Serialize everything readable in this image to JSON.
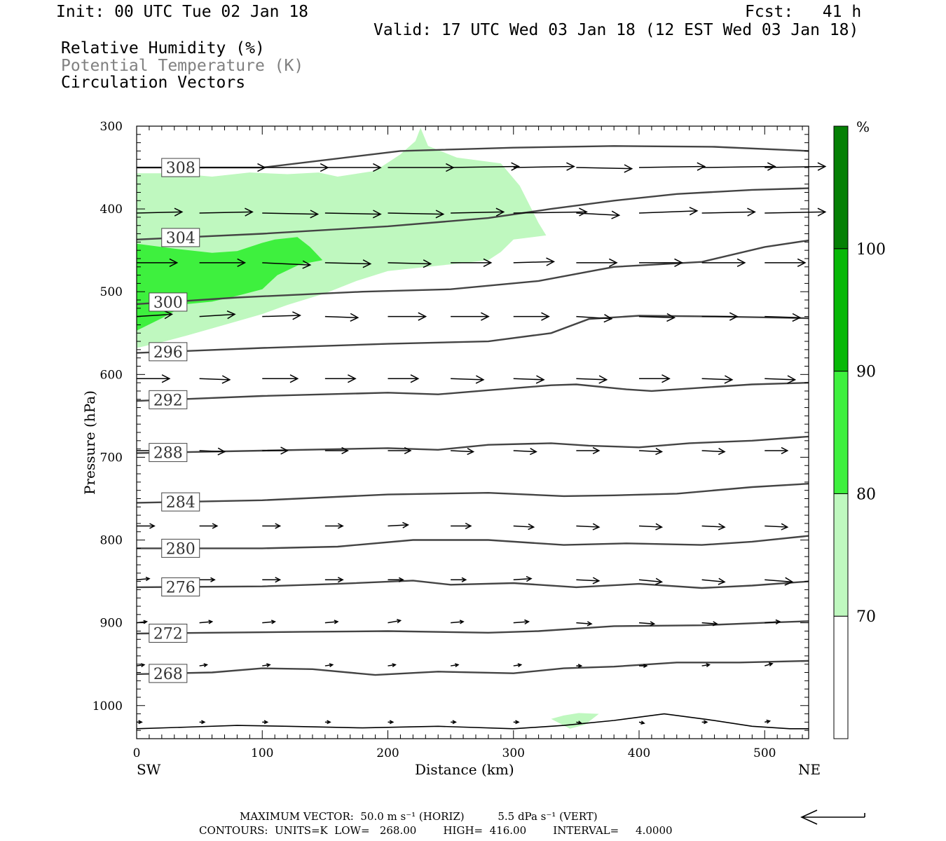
{
  "header": {
    "init": "Init: 00 UTC Tue 02 Jan 18",
    "fcst": "Fcst:   41 h",
    "valid": "Valid: 17 UTC Wed 03 Jan 18 (12 EST Wed 03 Jan 18)",
    "fields": [
      "Relative Humidity (%)",
      "Potential Temperature (K)",
      "Circulation Vectors"
    ]
  },
  "colors": {
    "rh70": "#bff8bf",
    "rh80": "#3ef03e",
    "rh90": "#07b807",
    "rh100": "#058005",
    "theta_line": "#444444",
    "field_rh": "#000000",
    "field_theta": "#808080",
    "field_vec": "#000000"
  },
  "chart_data": {
    "type": "cross-section",
    "xlabel": "Distance (km)",
    "ylabel": "Pressure (hPa)",
    "x_range": [
      0,
      535
    ],
    "y_range": [
      300,
      1040
    ],
    "y_scale": "linear, inverted",
    "x_ticks": [
      0,
      100,
      200,
      300,
      400,
      500
    ],
    "y_ticks": [
      300,
      400,
      500,
      600,
      700,
      800,
      900,
      1000
    ],
    "x_end_labels": {
      "left": "SW",
      "right": "NE"
    },
    "colorbar": {
      "unit": "%",
      "levels": [
        70,
        80,
        90,
        100
      ]
    },
    "rh_regions": [
      {
        "level": 70,
        "points": [
          [
            0,
            357
          ],
          [
            30,
            357
          ],
          [
            60,
            361
          ],
          [
            90,
            356
          ],
          [
            120,
            358
          ],
          [
            145,
            356
          ],
          [
            160,
            361
          ],
          [
            190,
            354
          ],
          [
            210,
            334
          ],
          [
            222,
            318
          ],
          [
            226,
            302
          ],
          [
            232,
            324
          ],
          [
            255,
            338
          ],
          [
            290,
            345
          ],
          [
            305,
            372
          ],
          [
            320,
            417
          ],
          [
            326,
            432
          ],
          [
            300,
            437
          ],
          [
            290,
            452
          ],
          [
            280,
            462
          ],
          [
            250,
            467
          ],
          [
            200,
            475
          ],
          [
            175,
            487
          ],
          [
            150,
            502
          ],
          [
            120,
            516
          ],
          [
            100,
            527
          ],
          [
            70,
            540
          ],
          [
            40,
            553
          ],
          [
            20,
            561
          ],
          [
            0,
            568
          ]
        ]
      },
      {
        "level": 70,
        "points": [
          [
            330,
            1016
          ],
          [
            345,
            1028
          ],
          [
            357,
            1023
          ],
          [
            368,
            1010
          ],
          [
            352,
            1009
          ],
          [
            340,
            1012
          ]
        ]
      },
      {
        "level": 80,
        "points": [
          [
            0,
            442
          ],
          [
            30,
            448
          ],
          [
            60,
            453
          ],
          [
            80,
            451
          ],
          [
            100,
            441
          ],
          [
            110,
            437
          ],
          [
            128,
            434
          ],
          [
            138,
            446
          ],
          [
            148,
            462
          ],
          [
            130,
            467
          ],
          [
            112,
            480
          ],
          [
            100,
            497
          ],
          [
            80,
            505
          ],
          [
            60,
            512
          ],
          [
            40,
            515
          ],
          [
            20,
            532
          ],
          [
            0,
            547
          ]
        ]
      }
    ],
    "theta_contours": [
      {
        "value": 308,
        "label_at": 35,
        "points": [
          [
            0,
            350
          ],
          [
            100,
            350
          ],
          [
            210,
            330
          ],
          [
            300,
            326
          ],
          [
            380,
            324
          ],
          [
            460,
            325
          ],
          [
            535,
            330
          ]
        ]
      },
      {
        "value": 304,
        "label_at": 35,
        "points": [
          [
            0,
            437
          ],
          [
            100,
            430
          ],
          [
            200,
            421
          ],
          [
            280,
            411
          ],
          [
            330,
            400
          ],
          [
            380,
            390
          ],
          [
            430,
            382
          ],
          [
            490,
            377
          ],
          [
            535,
            375
          ]
        ]
      },
      {
        "value": 300,
        "label_at": 25,
        "points": [
          [
            0,
            515
          ],
          [
            80,
            507
          ],
          [
            180,
            500
          ],
          [
            250,
            497
          ],
          [
            320,
            487
          ],
          [
            380,
            470
          ],
          [
            450,
            464
          ],
          [
            500,
            446
          ],
          [
            535,
            438
          ]
        ]
      },
      {
        "value": 296,
        "label_at": 25,
        "points": [
          [
            0,
            574
          ],
          [
            100,
            568
          ],
          [
            200,
            563
          ],
          [
            280,
            560
          ],
          [
            330,
            550
          ],
          [
            360,
            533
          ],
          [
            400,
            529
          ],
          [
            460,
            530
          ],
          [
            535,
            532
          ]
        ]
      },
      {
        "value": 292,
        "label_at": 25,
        "points": [
          [
            0,
            632
          ],
          [
            100,
            626
          ],
          [
            200,
            622
          ],
          [
            240,
            624
          ],
          [
            280,
            619
          ],
          [
            330,
            613
          ],
          [
            350,
            612
          ],
          [
            390,
            618
          ],
          [
            410,
            620
          ],
          [
            450,
            616
          ],
          [
            490,
            612
          ],
          [
            535,
            610
          ]
        ]
      },
      {
        "value": 288,
        "label_at": 25,
        "points": [
          [
            0,
            695
          ],
          [
            100,
            692
          ],
          [
            200,
            689
          ],
          [
            240,
            691
          ],
          [
            280,
            685
          ],
          [
            330,
            683
          ],
          [
            360,
            686
          ],
          [
            400,
            688
          ],
          [
            440,
            683
          ],
          [
            490,
            680
          ],
          [
            535,
            675
          ]
        ]
      },
      {
        "value": 284,
        "label_at": 35,
        "points": [
          [
            0,
            755
          ],
          [
            100,
            752
          ],
          [
            200,
            745
          ],
          [
            280,
            743
          ],
          [
            340,
            747
          ],
          [
            380,
            746
          ],
          [
            430,
            744
          ],
          [
            490,
            736
          ],
          [
            535,
            732
          ]
        ]
      },
      {
        "value": 280,
        "label_at": 35,
        "points": [
          [
            0,
            810
          ],
          [
            100,
            810
          ],
          [
            160,
            808
          ],
          [
            220,
            800
          ],
          [
            280,
            800
          ],
          [
            340,
            806
          ],
          [
            390,
            804
          ],
          [
            450,
            806
          ],
          [
            490,
            802
          ],
          [
            535,
            795
          ]
        ]
      },
      {
        "value": 276,
        "label_at": 35,
        "points": [
          [
            0,
            857
          ],
          [
            100,
            856
          ],
          [
            160,
            853
          ],
          [
            220,
            849
          ],
          [
            250,
            854
          ],
          [
            300,
            852
          ],
          [
            350,
            857
          ],
          [
            400,
            853
          ],
          [
            450,
            858
          ],
          [
            490,
            855
          ],
          [
            535,
            850
          ]
        ]
      },
      {
        "value": 272,
        "label_at": 25,
        "points": [
          [
            0,
            913
          ],
          [
            60,
            912
          ],
          [
            130,
            911
          ],
          [
            200,
            910
          ],
          [
            280,
            912
          ],
          [
            320,
            910
          ],
          [
            380,
            904
          ],
          [
            450,
            903
          ],
          [
            500,
            900
          ],
          [
            535,
            898
          ]
        ]
      },
      {
        "value": 268,
        "label_at": 25,
        "points": [
          [
            0,
            962
          ],
          [
            60,
            960
          ],
          [
            100,
            955
          ],
          [
            140,
            956
          ],
          [
            190,
            963
          ],
          [
            240,
            959
          ],
          [
            300,
            961
          ],
          [
            340,
            955
          ],
          [
            380,
            953
          ],
          [
            430,
            948
          ],
          [
            480,
            948
          ],
          [
            535,
            946
          ]
        ]
      }
    ],
    "surface": [
      [
        0,
        1028
      ],
      [
        40,
        1026
      ],
      [
        80,
        1024
      ],
      [
        120,
        1025
      ],
      [
        180,
        1027
      ],
      [
        240,
        1025
      ],
      [
        300,
        1028
      ],
      [
        340,
        1024
      ],
      [
        380,
        1018
      ],
      [
        420,
        1010
      ],
      [
        455,
        1017
      ],
      [
        490,
        1025
      ],
      [
        520,
        1028
      ],
      [
        535,
        1028
      ]
    ],
    "vector_rows": [
      {
        "p": 350,
        "u": [
          23,
          26,
          26,
          22,
          26,
          27,
          24,
          22,
          26,
          29,
          24
        ],
        "v": [
          0,
          0,
          0,
          0,
          0,
          1,
          1,
          -1,
          1,
          1,
          1
        ]
      },
      {
        "p": 405,
        "u": [
          18,
          21,
          22,
          22,
          22,
          21,
          29,
          17,
          23,
          21,
          24
        ],
        "v": [
          1,
          1,
          -1,
          -1,
          -1,
          1,
          1,
          -2,
          2,
          1,
          1
        ]
      },
      {
        "p": 465,
        "u": [
          16,
          18,
          19,
          18,
          17,
          16,
          16,
          16,
          17,
          17,
          16
        ],
        "v": [
          0,
          0,
          -2,
          -1,
          -1,
          0,
          1,
          0,
          0,
          0,
          0
        ]
      },
      {
        "p": 530,
        "u": [
          14,
          14,
          15,
          13,
          15,
          15,
          14,
          14,
          14,
          14,
          14
        ],
        "v": [
          2,
          2,
          1,
          -1,
          0,
          0,
          0,
          -2,
          -1,
          0,
          -1
        ]
      },
      {
        "p": 605,
        "u": [
          13,
          12,
          14,
          12,
          12,
          13,
          12,
          12,
          12,
          12,
          12
        ],
        "v": [
          0,
          -1,
          0,
          0,
          0,
          -1,
          -1,
          -1,
          0,
          -1,
          -1
        ]
      },
      {
        "p": 692,
        "u": [
          10,
          10,
          10,
          9,
          9,
          9,
          9,
          9,
          9,
          9,
          9
        ],
        "v": [
          0,
          -1,
          0,
          0,
          0,
          -1,
          -1,
          0,
          -1,
          -1,
          0
        ]
      },
      {
        "p": 783,
        "u": [
          7,
          7,
          7,
          7,
          8,
          8,
          8,
          9,
          9,
          9,
          9
        ],
        "v": [
          0,
          0,
          0,
          0,
          1,
          0,
          -1,
          -1,
          -1,
          -1,
          -1
        ]
      },
      {
        "p": 848,
        "u": [
          5,
          6,
          7,
          7,
          6,
          6,
          7,
          9,
          9,
          9,
          11
        ],
        "v": [
          1,
          0,
          0,
          0,
          0,
          0,
          1,
          -1,
          -2,
          -2,
          -2
        ]
      },
      {
        "p": 900,
        "u": [
          4,
          5,
          5,
          5,
          5,
          5,
          6,
          6,
          6,
          6,
          6
        ],
        "v": [
          1,
          1,
          1,
          1,
          2,
          1,
          1,
          -1,
          -1,
          -1,
          1
        ]
      },
      {
        "p": 952,
        "u": [
          3,
          3,
          3,
          3,
          3,
          3,
          3,
          2,
          3,
          3,
          3
        ],
        "v": [
          1,
          1,
          1,
          1,
          1,
          1,
          1,
          0,
          0,
          1,
          2
        ]
      },
      {
        "p": 1020,
        "u": [
          2,
          2,
          2,
          2,
          2,
          2,
          2,
          2,
          2,
          2,
          2
        ],
        "v": [
          0,
          0,
          0,
          0,
          0,
          0,
          0,
          -1,
          -1,
          0,
          1
        ]
      }
    ],
    "vector_x": [
      0,
      50,
      100,
      150,
      200,
      250,
      300,
      350,
      400,
      450,
      500
    ]
  },
  "footer": {
    "max_vector": "MAXIMUM VECTOR:  50.0 m s⁻¹ (HORIZ)          5.5 dPa s⁻¹ (VERT)",
    "contours": "CONTOURS:  UNITS=K  LOW=   268.00        HIGH=  416.00        INTERVAL=     4.0000"
  }
}
